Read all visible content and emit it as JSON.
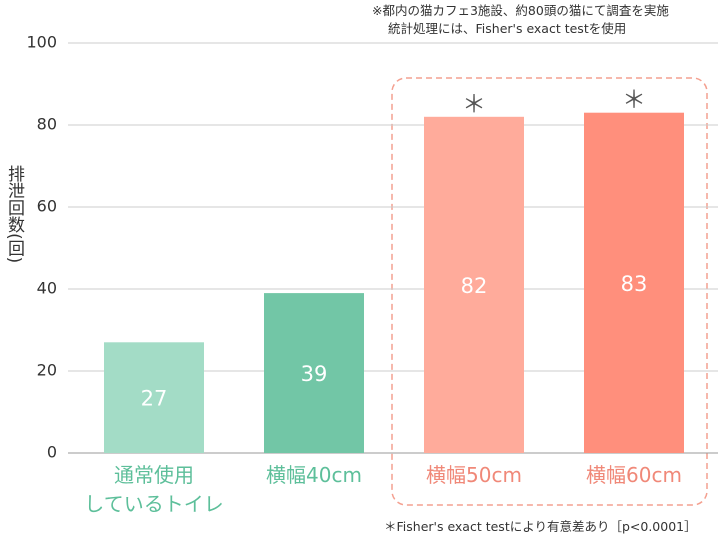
{
  "chart_data": {
    "type": "bar",
    "notes": [
      "※都内の猫カフェ3施設、約80頭の猫にて調査を実施",
      "統計処理には、Fisher's exact testを使用"
    ],
    "y_label": "排泄回数(回)",
    "categories": [
      "通常使用\nしているトイレ",
      "横幅40cm",
      "横幅50cm",
      "横幅60cm"
    ],
    "values": [
      27,
      39,
      82,
      83
    ],
    "colors": [
      "#a3dcc6",
      "#72c6a6",
      "#ffab9b",
      "#ff8f7c"
    ],
    "label_colors": [
      "#5dbf9a",
      "#5dbf9a",
      "#f08878",
      "#f08878"
    ],
    "significance": [
      null,
      null,
      "＊",
      "＊"
    ],
    "footnote": "＊Fisher's exact testにより有意差あり［p<0.0001］",
    "ylim": [
      0,
      100
    ],
    "yticks": [
      0,
      20,
      40,
      60,
      80,
      100
    ],
    "grid": true
  }
}
